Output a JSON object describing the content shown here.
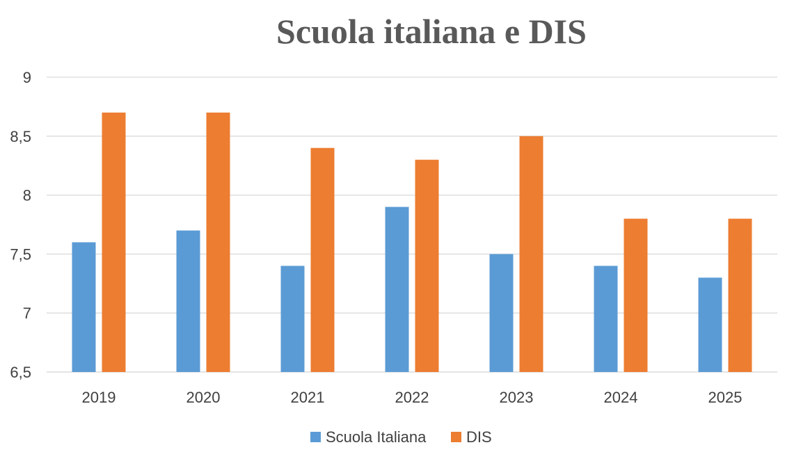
{
  "chart_data": {
    "type": "bar",
    "title": "Scuola italiana e DIS",
    "xlabel": "",
    "ylabel": "",
    "categories": [
      "2019",
      "2020",
      "2021",
      "2022",
      "2023",
      "2024",
      "2025"
    ],
    "series": [
      {
        "name": "Scuola Italiana",
        "color": "#5B9BD5",
        "values": [
          7.6,
          7.7,
          7.4,
          7.9,
          7.5,
          7.4,
          7.3
        ]
      },
      {
        "name": "DIS",
        "color": "#ED7D31",
        "values": [
          8.7,
          8.7,
          8.4,
          8.3,
          8.5,
          7.8,
          7.8
        ]
      }
    ],
    "ylim": [
      6.5,
      9
    ],
    "yticks": [
      "6,5",
      "7",
      "7,5",
      "8",
      "8,5",
      "9"
    ],
    "grid": true,
    "legend_position": "bottom"
  }
}
